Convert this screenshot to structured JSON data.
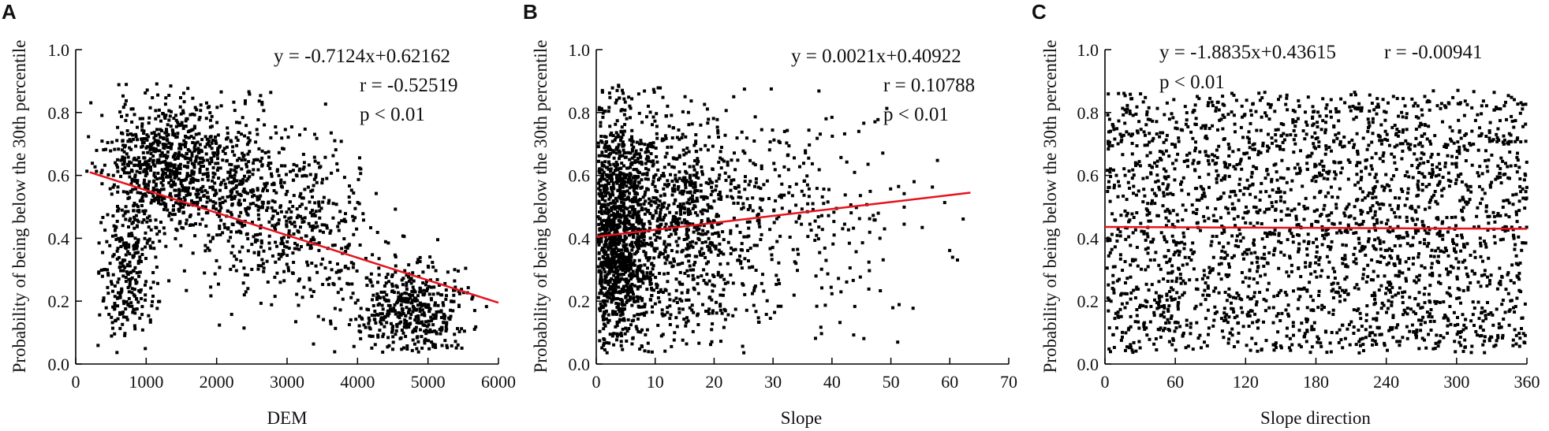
{
  "chart_data": [
    {
      "type": "scatter",
      "panel_label": "A",
      "xlabel": "DEM",
      "ylabel": "Probability of being below the 30th percentile",
      "xlim": [
        0,
        6000
      ],
      "ylim": [
        0,
        1.0
      ],
      "xticks": [
        0,
        1000,
        2000,
        3000,
        4000,
        5000,
        6000
      ],
      "yticks": [
        0.0,
        0.2,
        0.4,
        0.6,
        0.8,
        1.0
      ],
      "xtick_labels": [
        "0",
        "1000",
        "2000",
        "3000",
        "4000",
        "5000",
        "6000"
      ],
      "ytick_labels": [
        "0.0",
        "0.2",
        "0.4",
        "0.6",
        "0.8",
        "1.0"
      ],
      "annotations": [
        "y = -0.7124x+0.62162",
        "r = -0.52519",
        "p < 0.01"
      ],
      "regression_line": {
        "x": [
          200,
          6000
        ],
        "y": [
          0.61,
          0.195
        ],
        "color": "#e8121b"
      },
      "point_color": "#000000",
      "point_count": 2200,
      "point_clusters": [
        {
          "x_center": 1300,
          "x_spread": 450,
          "y_center": 0.64,
          "y_spread": 0.11,
          "weight": 0.34
        },
        {
          "x_center": 2300,
          "x_spread": 550,
          "y_center": 0.55,
          "y_spread": 0.13,
          "weight": 0.2
        },
        {
          "x_center": 3400,
          "x_spread": 450,
          "y_center": 0.42,
          "y_spread": 0.14,
          "weight": 0.12
        },
        {
          "x_center": 4750,
          "x_spread": 380,
          "y_center": 0.17,
          "y_spread": 0.08,
          "weight": 0.22
        },
        {
          "x_center": 750,
          "x_spread": 220,
          "y_center": 0.3,
          "y_spread": 0.12,
          "weight": 0.12
        }
      ]
    },
    {
      "type": "scatter",
      "panel_label": "B",
      "xlabel": "Slope",
      "ylabel": "Probability of being below the 30th percentile",
      "xlim": [
        0,
        70
      ],
      "ylim": [
        0,
        1.0
      ],
      "xticks": [
        0,
        10,
        20,
        30,
        40,
        50,
        60,
        70
      ],
      "yticks": [
        0.0,
        0.2,
        0.4,
        0.6,
        0.8,
        1.0
      ],
      "xtick_labels": [
        "0",
        "10",
        "20",
        "30",
        "40",
        "50",
        "60",
        "70"
      ],
      "ytick_labels": [
        "0.0",
        "0.2",
        "0.4",
        "0.6",
        "0.8",
        "1.0"
      ],
      "annotations": [
        "y = 0.0021x+0.40922",
        "r = 0.10788",
        "p < 0.01"
      ],
      "regression_line": {
        "x": [
          0,
          63.5
        ],
        "y": [
          0.405,
          0.545
        ],
        "color": "#e8121b"
      },
      "point_color": "#000000",
      "point_count": 2600,
      "point_clusters": [
        {
          "x_center": 3,
          "x_spread": 3,
          "y_center": 0.4,
          "y_spread": 0.2,
          "weight": 0.5
        },
        {
          "x_center": 12,
          "x_spread": 7,
          "y_center": 0.45,
          "y_spread": 0.19,
          "weight": 0.35
        },
        {
          "x_center": 30,
          "x_spread": 12,
          "y_center": 0.45,
          "y_spread": 0.18,
          "weight": 0.15
        }
      ]
    },
    {
      "type": "scatter",
      "panel_label": "C",
      "xlabel": "Slope direction",
      "ylabel": "Probability of being below the 30th percentile",
      "xlim": [
        0,
        360
      ],
      "ylim": [
        0,
        1.0
      ],
      "xticks": [
        0,
        60,
        120,
        180,
        240,
        300,
        360
      ],
      "yticks": [
        0.0,
        0.2,
        0.4,
        0.6,
        0.8,
        1.0
      ],
      "xtick_labels": [
        "0",
        "60",
        "120",
        "180",
        "240",
        "300",
        "360"
      ],
      "ytick_labels": [
        "0.0",
        "0.2",
        "0.4",
        "0.6",
        "0.8",
        "1.0"
      ],
      "annotations": [
        "y = -1.8835x+0.43615",
        "r = -0.00941",
        "p < 0.01"
      ],
      "regression_line": {
        "x": [
          0,
          360
        ],
        "y": [
          0.436,
          0.43
        ],
        "color": "#e8121b"
      },
      "point_color": "#000000",
      "point_count": 2600,
      "point_clusters": [
        {
          "x_center": 180,
          "x_spread": 200,
          "y_center": 0.43,
          "y_spread": 0.2,
          "weight": 1.0
        }
      ]
    }
  ]
}
